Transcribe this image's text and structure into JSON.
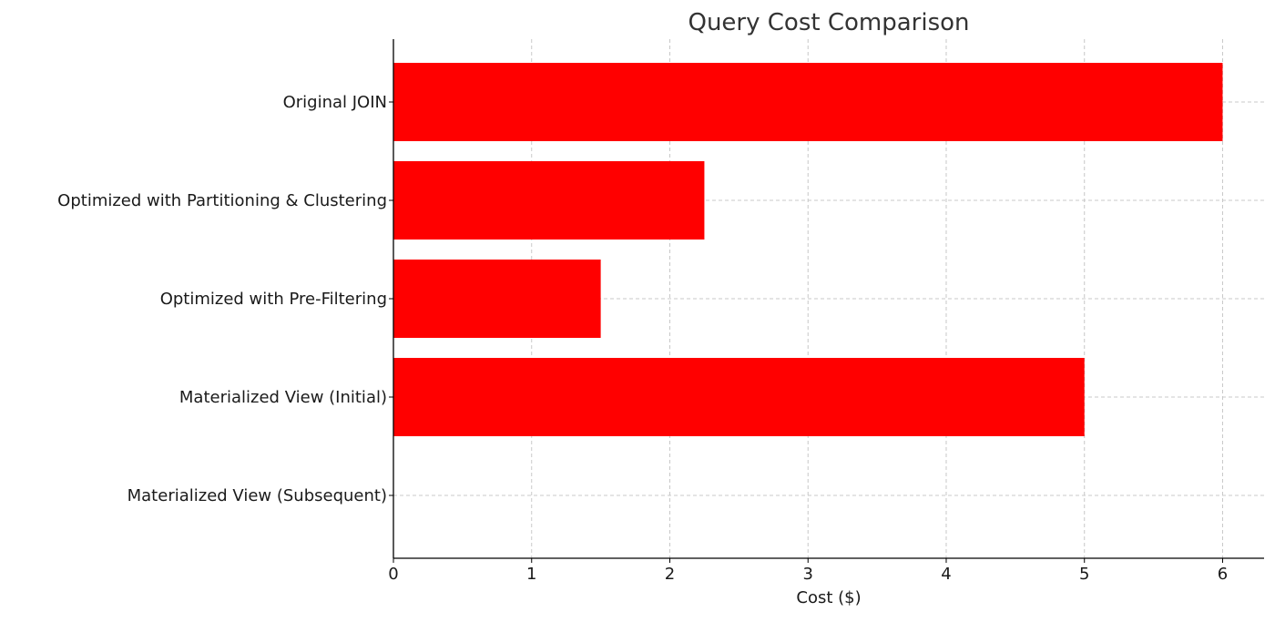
{
  "chart_data": {
    "type": "bar",
    "orientation": "horizontal",
    "title": "Query Cost Comparison",
    "xlabel": "Cost ($)",
    "ylabel": "",
    "categories": [
      "Original JOIN",
      "Optimized with Partitioning & Clustering",
      "Optimized with Pre-Filtering",
      "Materialized View (Initial)",
      "Materialized View (Subsequent)"
    ],
    "values": [
      6,
      2.25,
      1.5,
      5,
      0
    ],
    "xlim": [
      0,
      6.3
    ],
    "xticks": [
      0,
      1,
      2,
      3,
      4,
      5,
      6
    ],
    "grid": true,
    "bar_color": "#ff0000"
  }
}
